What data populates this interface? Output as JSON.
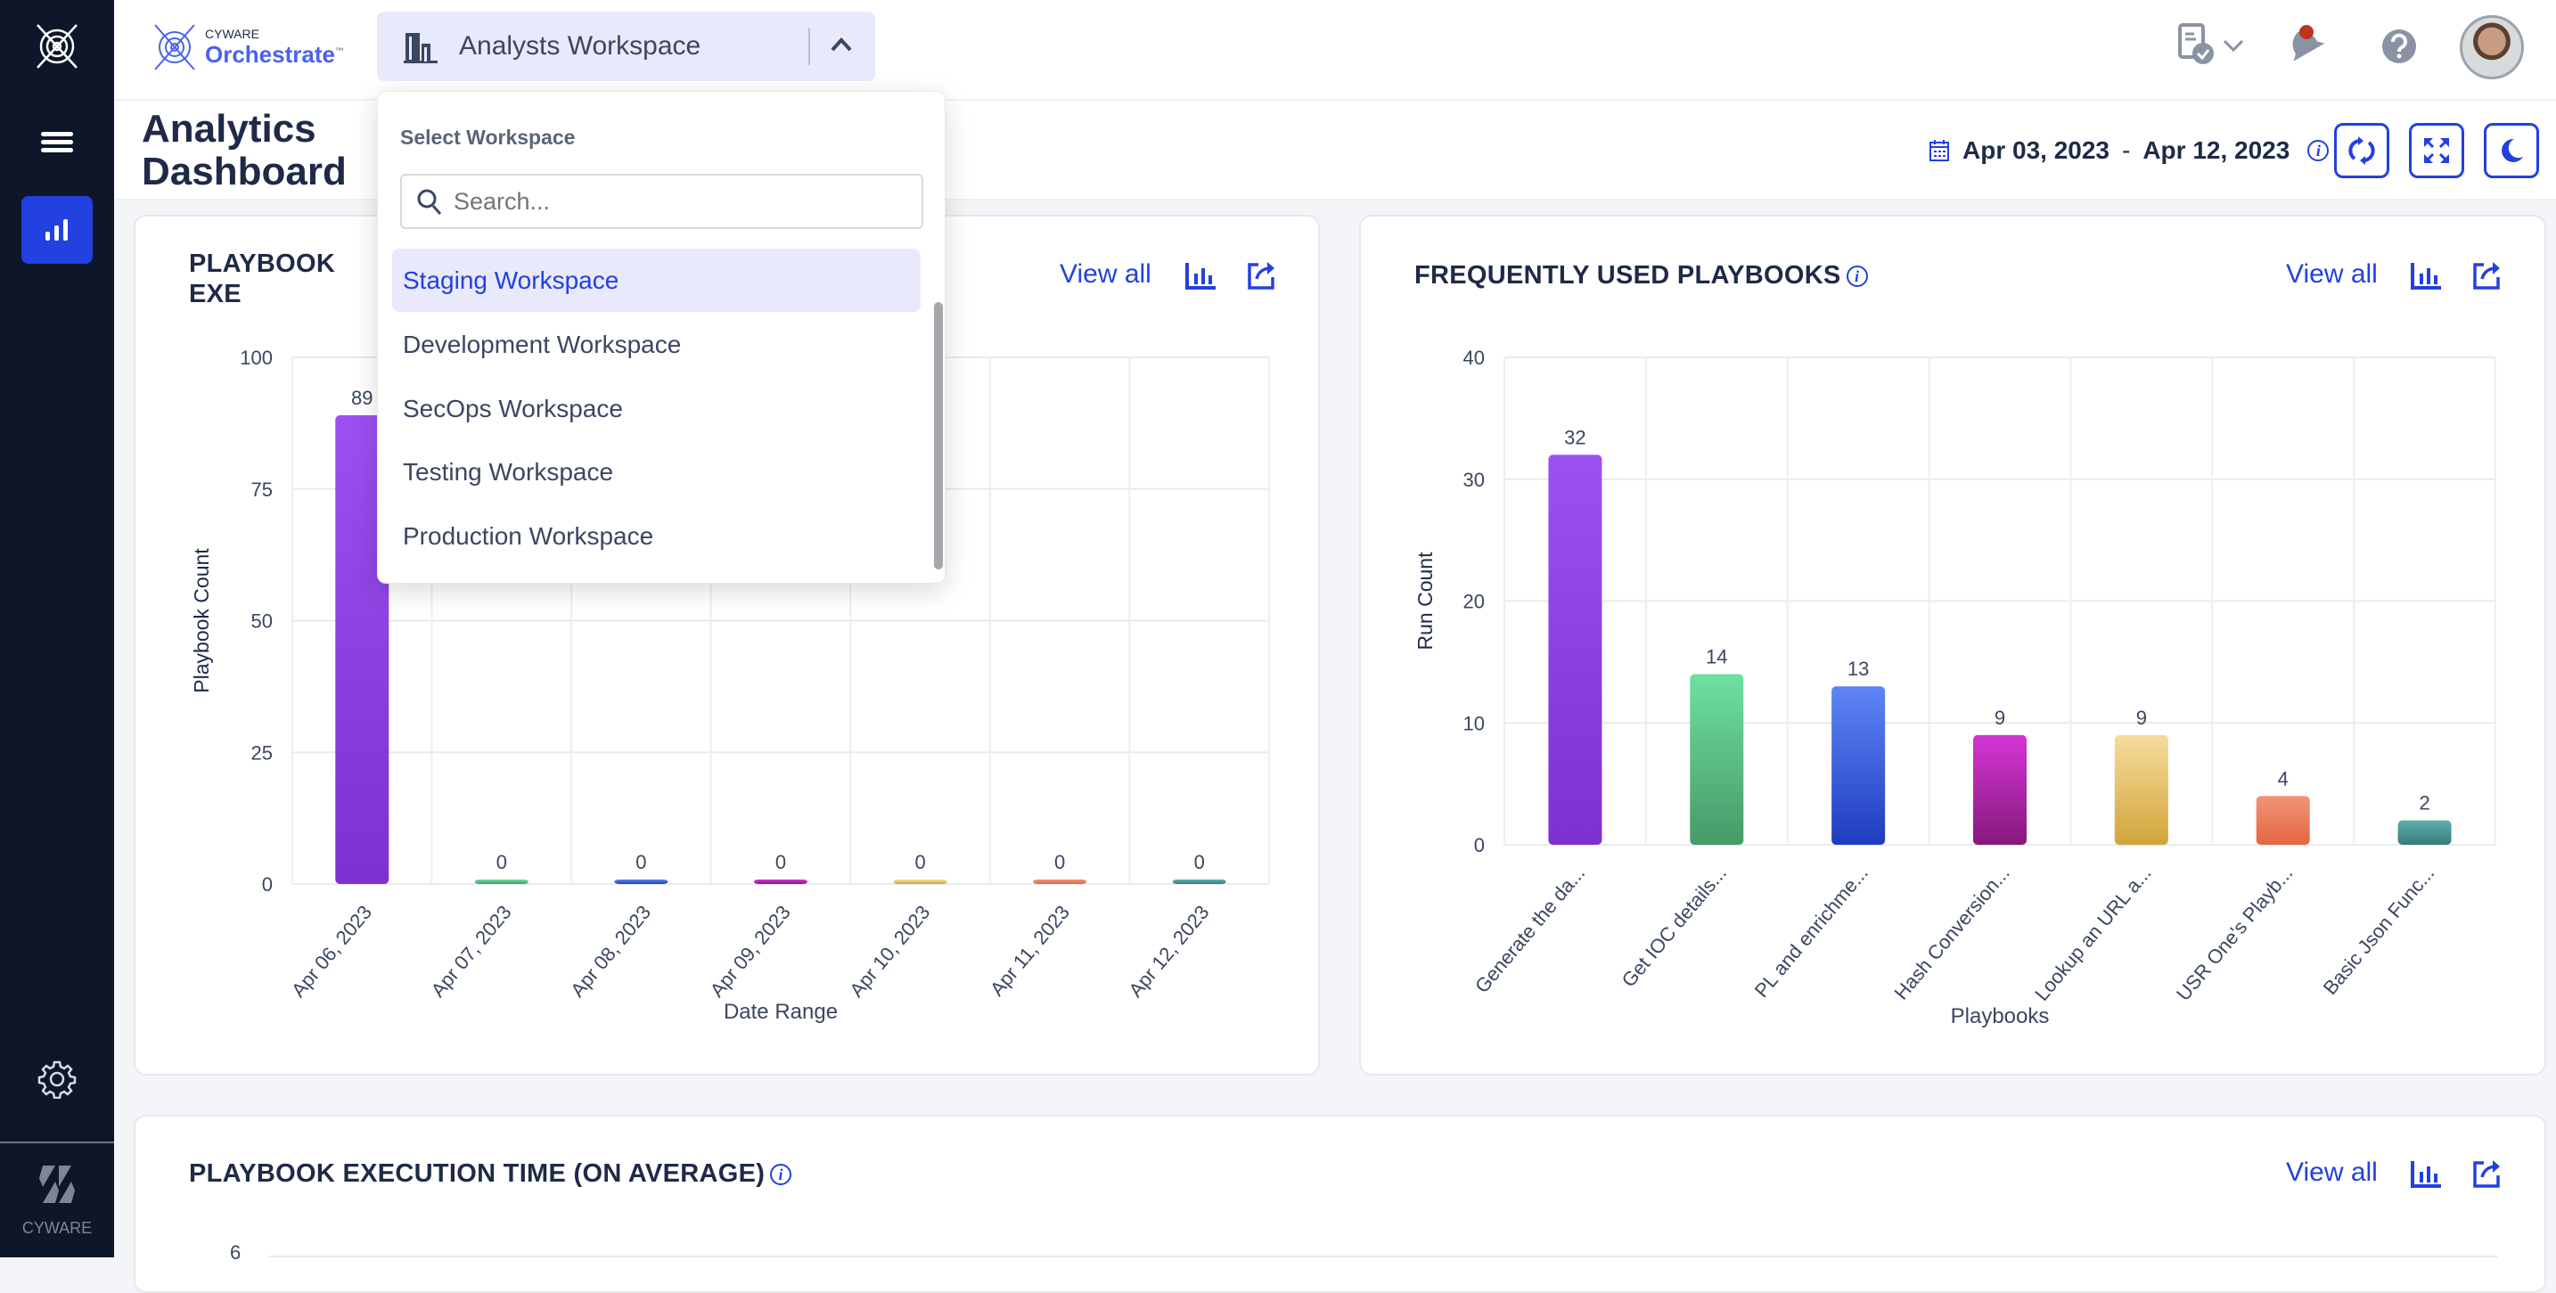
{
  "app": {
    "brand_small": "CYWARE",
    "brand_name": "Orchestrate",
    "trademark": "™"
  },
  "sidebar": {
    "items": [
      {
        "icon": "cyware-orbit-logo-icon"
      },
      {
        "icon": "hamburger-menu-icon"
      },
      {
        "icon": "analytics-bar-chart-icon",
        "active": true
      },
      {
        "icon": "gear-icon"
      }
    ],
    "footer_label": "CYWARE"
  },
  "workspace": {
    "current": "Analysts Workspace",
    "icon": "building-icon",
    "expanded": true
  },
  "dropdown": {
    "heading": "Select Workspace",
    "search_placeholder": "Search...",
    "options": [
      {
        "label": "Staging Workspace",
        "selected": true
      },
      {
        "label": "Development Workspace"
      },
      {
        "label": "SecOps Workspace"
      },
      {
        "label": "Testing Workspace"
      },
      {
        "label": "Production Workspace"
      }
    ]
  },
  "topbar": {
    "icons": [
      "document-check-icon",
      "bell-icon",
      "help-icon",
      "avatar"
    ]
  },
  "page": {
    "title": "Analytics Dashboard",
    "date_from": "Apr 03, 2023",
    "date_sep": "-",
    "date_to": "Apr 12, 2023",
    "buttons": [
      "refresh-icon",
      "fullscreen-icon",
      "dark-mode-moon-icon"
    ]
  },
  "cards": [
    {
      "title": "PLAYBOOK EXE",
      "view_all": "View all"
    },
    {
      "title": "FREQUENTLY USED PLAYBOOKS",
      "view_all": "View all"
    },
    {
      "title": "PLAYBOOK EXECUTION TIME (ON AVERAGE)",
      "view_all": "View all",
      "first_tick": "6"
    }
  ],
  "colors": {
    "accent": "#2340e0",
    "sidebar": "#0d1729",
    "notification": "#c0341d"
  },
  "chart_data": [
    {
      "type": "bar",
      "xlabel": "Date Range",
      "ylabel": "Playbook Count",
      "ylim": [
        0,
        100
      ],
      "yticks": [
        0,
        25,
        50,
        75,
        100
      ],
      "grid": true,
      "categories": [
        "Apr 06, 2023",
        "Apr 07, 2023",
        "Apr 08, 2023",
        "Apr 09, 2023",
        "Apr 10, 2023",
        "Apr 11, 2023",
        "Apr 12, 2023"
      ],
      "values": [
        89,
        0,
        0,
        0,
        0,
        0,
        0
      ],
      "bar_colors": [
        [
          "#9b51f0",
          "#7e30d0"
        ],
        [
          "#6ee0a0",
          "#479a68"
        ],
        [
          "#5f85f5",
          "#1f3cc0"
        ],
        [
          "#d535d5",
          "#85197a"
        ],
        [
          "#f5dc9c",
          "#d2a53a"
        ],
        [
          "#f09478",
          "#e4663f"
        ],
        [
          "#5fb0ae",
          "#3a7a7a"
        ]
      ]
    },
    {
      "type": "bar",
      "xlabel": "Playbooks",
      "ylabel": "Run Count",
      "ylim": [
        0,
        40
      ],
      "yticks": [
        0,
        10,
        20,
        30,
        40
      ],
      "grid": true,
      "categories": [
        "Generate the da...",
        "Get IOC details...",
        "PL and enrichme...",
        "Hash Conversion...",
        "Lookup an URL a...",
        "USR One's Playb...",
        "Basic Json Func..."
      ],
      "values": [
        32,
        14,
        13,
        9,
        9,
        4,
        2
      ],
      "bar_colors": [
        [
          "#9b51f0",
          "#7e30d0"
        ],
        [
          "#6ee0a0",
          "#479a68"
        ],
        [
          "#5f85f5",
          "#1f3cc0"
        ],
        [
          "#d535d5",
          "#85197a"
        ],
        [
          "#f5dc9c",
          "#d2a53a"
        ],
        [
          "#f09478",
          "#e4663f"
        ],
        [
          "#5fb0ae",
          "#3a7a7a"
        ]
      ]
    }
  ]
}
